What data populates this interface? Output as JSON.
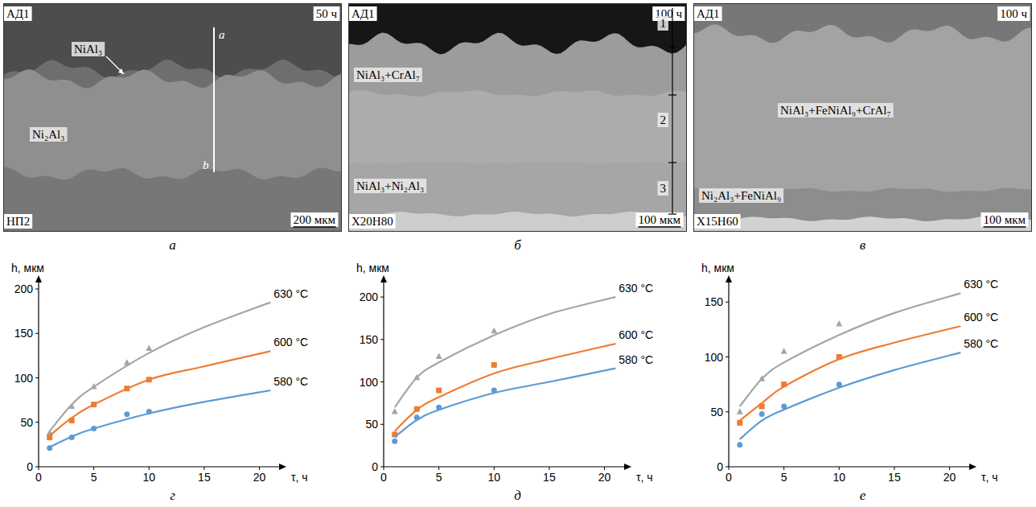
{
  "micrographs": [
    {
      "letter": "а",
      "top_material": "АД1",
      "bottom_material": "НП2",
      "time": "50 ч",
      "scale_bar": "200 мкм",
      "phases": [
        "NiAl₃",
        "Ni₂Al₃"
      ],
      "line_ends": [
        "a",
        "b"
      ]
    },
    {
      "letter": "б",
      "top_material": "АД1",
      "bottom_material": "Х20Н80",
      "time": "100 ч",
      "scale_bar": "100 мкм",
      "phases": [
        "NiAl₃+CrAl₇",
        "NiAl₃+Ni₂Al₃"
      ],
      "zones": [
        "1",
        "2",
        "3"
      ]
    },
    {
      "letter": "в",
      "top_material": "АД1",
      "bottom_material": "Х15Н60",
      "time": "100 ч",
      "scale_bar": "100 мкм",
      "phases": [
        "NiAl₃+FeNiAl₉+CrAl₇",
        "Ni₂Al₃+FeNiAl₉"
      ]
    }
  ],
  "chart_data": [
    {
      "type": "line",
      "label": "г",
      "x_label": "τ, ч",
      "y_label": "h, мкм",
      "xlim": [
        0,
        22
      ],
      "ylim": [
        0,
        210
      ],
      "xticks": [
        0,
        5,
        10,
        15,
        20
      ],
      "yticks": [
        0,
        50,
        100,
        150,
        200
      ],
      "grid": false,
      "series": [
        {
          "name": "630 °C",
          "type": "line",
          "color": "#a5a5a5",
          "x": [
            1,
            3,
            5,
            10,
            15,
            21
          ],
          "values": [
            40,
            70,
            90,
            128,
            157,
            185
          ]
        },
        {
          "type": "scatter",
          "marker": "triangle",
          "color": "#a5a5a5",
          "x": [
            1,
            3,
            5,
            8,
            10
          ],
          "values": [
            38,
            68,
            90,
            117,
            133
          ]
        },
        {
          "name": "600 °C",
          "type": "line",
          "color": "#ed7d31",
          "x": [
            1,
            3,
            5,
            10,
            15,
            21
          ],
          "values": [
            35,
            55,
            70,
            98,
            113,
            130
          ]
        },
        {
          "type": "scatter",
          "marker": "square",
          "color": "#ed7d31",
          "x": [
            1,
            3,
            5,
            8,
            10
          ],
          "values": [
            33,
            52,
            70,
            88,
            98
          ]
        },
        {
          "name": "580 °C",
          "type": "line",
          "color": "#5b9bd5",
          "x": [
            1,
            3,
            5,
            10,
            15,
            21
          ],
          "values": [
            22,
            34,
            43,
            60,
            73,
            86
          ]
        },
        {
          "type": "scatter",
          "marker": "circle",
          "color": "#5b9bd5",
          "x": [
            1,
            3,
            5,
            8,
            10
          ],
          "values": [
            21,
            33,
            43,
            59,
            62
          ]
        }
      ]
    },
    {
      "type": "line",
      "label": "д",
      "x_label": "τ, ч",
      "y_label": "h, мкм",
      "xlim": [
        0,
        22
      ],
      "ylim": [
        0,
        220
      ],
      "xticks": [
        0,
        5,
        10,
        15,
        20
      ],
      "yticks": [
        0,
        50,
        100,
        150,
        200
      ],
      "grid": false,
      "series": [
        {
          "name": "630 °C",
          "type": "line",
          "color": "#a5a5a5",
          "x": [
            1,
            3,
            5,
            10,
            15,
            21
          ],
          "values": [
            70,
            105,
            123,
            155,
            180,
            200
          ]
        },
        {
          "type": "scatter",
          "marker": "triangle",
          "color": "#a5a5a5",
          "x": [
            1,
            3,
            5,
            10
          ],
          "values": [
            65,
            105,
            130,
            160
          ]
        },
        {
          "name": "600 °C",
          "type": "line",
          "color": "#ed7d31",
          "x": [
            1,
            3,
            5,
            10,
            15,
            21
          ],
          "values": [
            42,
            67,
            82,
            110,
            127,
            145
          ]
        },
        {
          "type": "scatter",
          "marker": "square",
          "color": "#ed7d31",
          "x": [
            1,
            3,
            5,
            10
          ],
          "values": [
            38,
            68,
            90,
            120
          ]
        },
        {
          "name": "580 °C",
          "type": "line",
          "color": "#5b9bd5",
          "x": [
            1,
            3,
            5,
            10,
            15,
            21
          ],
          "values": [
            35,
            55,
            67,
            87,
            100,
            116
          ]
        },
        {
          "type": "scatter",
          "marker": "circle",
          "color": "#5b9bd5",
          "x": [
            1,
            3,
            5,
            10
          ],
          "values": [
            30,
            58,
            70,
            90
          ]
        }
      ]
    },
    {
      "type": "line",
      "label": "е",
      "x_label": "τ, ч",
      "y_label": "h, мкм",
      "xlim": [
        0,
        22
      ],
      "ylim": [
        0,
        170
      ],
      "xticks": [
        0,
        5,
        10,
        15,
        20
      ],
      "yticks": [
        0,
        50,
        100,
        150
      ],
      "grid": false,
      "series": [
        {
          "name": "630 °C",
          "type": "line",
          "color": "#a5a5a5",
          "x": [
            1,
            3,
            5,
            10,
            15,
            21
          ],
          "values": [
            55,
            80,
            95,
            120,
            140,
            158
          ]
        },
        {
          "type": "scatter",
          "marker": "triangle",
          "color": "#a5a5a5",
          "x": [
            1,
            3,
            5,
            10
          ],
          "values": [
            50,
            80,
            105,
            130
          ]
        },
        {
          "name": "600 °C",
          "type": "line",
          "color": "#ed7d31",
          "x": [
            1,
            3,
            5,
            10,
            15,
            21
          ],
          "values": [
            42,
            58,
            73,
            98,
            113,
            128
          ]
        },
        {
          "type": "scatter",
          "marker": "square",
          "color": "#ed7d31",
          "x": [
            1,
            3,
            5,
            10
          ],
          "values": [
            40,
            55,
            75,
            100
          ]
        },
        {
          "name": "580 °C",
          "type": "line",
          "color": "#5b9bd5",
          "x": [
            1,
            3,
            5,
            10,
            15,
            21
          ],
          "values": [
            25,
            42,
            52,
            72,
            88,
            104
          ]
        },
        {
          "type": "scatter",
          "marker": "circle",
          "color": "#5b9bd5",
          "x": [
            1,
            3,
            5,
            10
          ],
          "values": [
            20,
            48,
            55,
            75
          ]
        }
      ]
    }
  ]
}
